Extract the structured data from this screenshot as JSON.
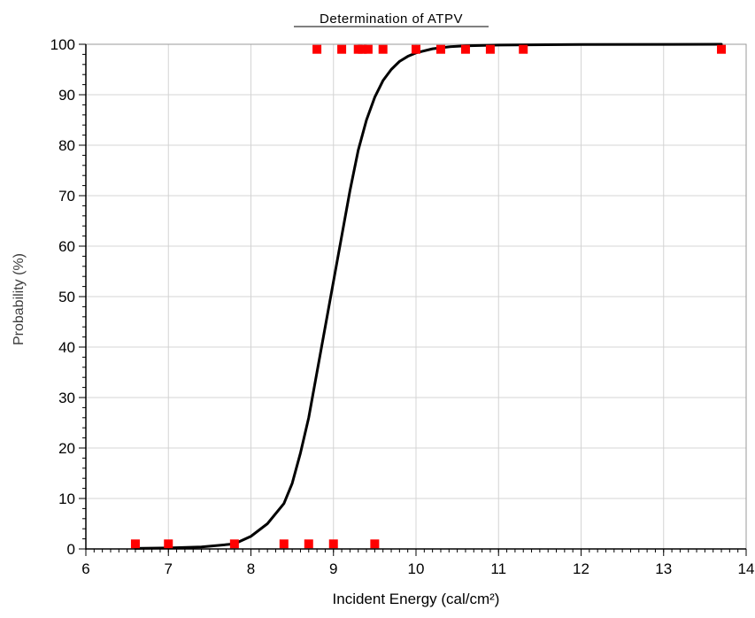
{
  "chart_data": {
    "type": "scatter",
    "title": "Determination of ATPV",
    "xlabel": "Incident Energy (cal/cm²)",
    "ylabel": "Probability (%)",
    "xlim": [
      6,
      14
    ],
    "ylim": [
      0,
      100
    ],
    "x_ticks": [
      "6",
      "7",
      "8",
      "9",
      "10",
      "11",
      "12",
      "13",
      "14"
    ],
    "y_ticks": [
      "0",
      "10",
      "20",
      "30",
      "40",
      "50",
      "60",
      "70",
      "80",
      "90",
      "100"
    ],
    "grid": true,
    "series": [
      {
        "type": "scatter",
        "color": "#ff0000",
        "x": [
          6.6,
          7.0,
          7.8,
          8.4,
          8.7,
          9.0,
          9.5,
          8.8,
          9.1,
          9.3,
          9.35,
          9.42,
          9.6,
          10.0,
          10.3,
          10.6,
          10.9,
          11.3,
          13.7
        ],
        "y": [
          1,
          1,
          1,
          1,
          1,
          1,
          1,
          99,
          99,
          99,
          99,
          99,
          99,
          99,
          99,
          99,
          99,
          99,
          99
        ]
      },
      {
        "type": "line",
        "color": "#000000",
        "x": [
          6.6,
          7.0,
          7.4,
          7.8,
          8.0,
          8.2,
          8.4,
          8.5,
          8.6,
          8.7,
          8.8,
          8.9,
          9.0,
          9.1,
          9.2,
          9.3,
          9.4,
          9.5,
          9.6,
          9.7,
          9.8,
          9.9,
          10.0,
          10.2,
          10.4,
          10.6,
          11.0,
          12.0,
          13.7
        ],
        "y": [
          0.1,
          0.2,
          0.4,
          1.0,
          2.5,
          5.0,
          9.0,
          13.0,
          19.0,
          26.0,
          35.0,
          44.0,
          53.0,
          62.0,
          71.0,
          79.0,
          85.0,
          89.5,
          92.8,
          95.0,
          96.6,
          97.6,
          98.3,
          99.1,
          99.5,
          99.7,
          99.85,
          99.95,
          100.0
        ]
      }
    ]
  }
}
